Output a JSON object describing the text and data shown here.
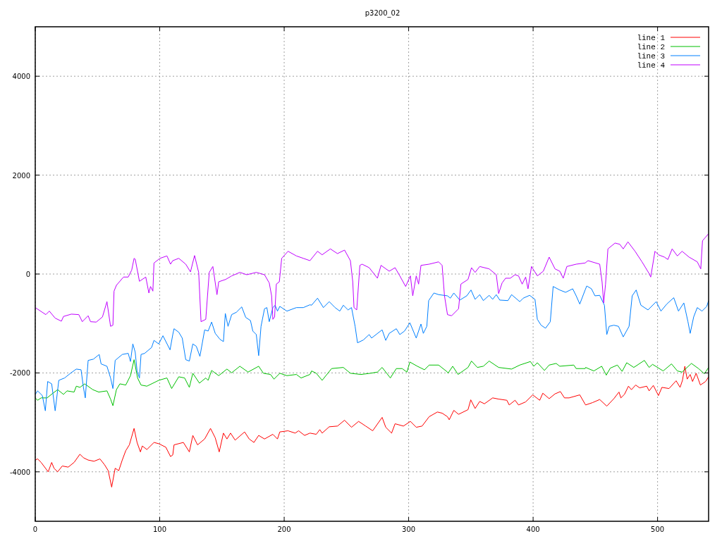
{
  "chart_data": {
    "type": "line",
    "title": "p3200_02",
    "xlim": [
      0,
      541
    ],
    "ylim": [
      -5000,
      5000
    ],
    "xticks": [
      0,
      100,
      200,
      300,
      400,
      500
    ],
    "yticks": [
      -4000,
      -2000,
      0,
      2000,
      4000
    ],
    "grid": true,
    "legend": "top right",
    "line_style": "solid",
    "marker": "none",
    "series": [
      {
        "name": "line 1",
        "color": "#ff0000",
        "x": [
          0,
          1.9,
          4.7,
          10.4,
          13.2,
          15.1,
          18,
          21.7,
          26.5,
          31.2,
          35.9,
          38.7,
          42.5,
          47.2,
          52,
          55.7,
          58.6,
          61.4,
          64.2,
          67.1,
          69.9,
          72.7,
          75.6,
          79.4,
          81.8,
          84.5,
          86,
          89.7,
          95.4,
          99.2,
          104.9,
          108.7,
          110.5,
          111.5,
          119,
          123.8,
          126.6,
          130.4,
          136.1,
          140.8,
          144.6,
          147.8,
          151.2,
          154,
          156.9,
          160.6,
          168.2,
          171.9,
          175.7,
          179.5,
          184.2,
          190.9,
          194.6,
          196.5,
          203.1,
          208.8,
          211.6,
          216.4,
          220.7,
          225.8,
          228.6,
          230.5,
          236.2,
          242.8,
          248.5,
          254.1,
          259.8,
          265.5,
          271.1,
          278.7,
          281.6,
          286.3,
          289.1,
          295.8,
          301.4,
          306.1,
          310.8,
          316.5,
          323.1,
          326.9,
          331.2,
          332.6,
          336.3,
          340.1,
          347.7,
          349.9,
          353.4,
          357.1,
          360.9,
          367.5,
          372.3,
          378.9,
          380.8,
          385.5,
          388.3,
          394,
          399.7,
          405.3,
          407.8,
          412.9,
          417.6,
          421.9,
          425.2,
          428.9,
          437.5,
          441.8,
          442.2,
          447.8,
          453.5,
          459.2,
          464.9,
          469,
          470.5,
          473.4,
          476.6,
          479,
          482.4,
          485.6,
          491.3,
          493.2,
          496.6,
          500.7,
          503.5,
          509.2,
          514.9,
          518.1,
          520,
          521.9,
          523.8,
          526.2,
          528.1,
          531,
          534.4,
          538.6,
          541
        ],
        "values": [
          -3762,
          -3738,
          -3810,
          -4000,
          -3810,
          -3929,
          -4000,
          -3882,
          -3905,
          -3810,
          -3644,
          -3715,
          -3762,
          -3786,
          -3739,
          -3858,
          -3976,
          -4309,
          -3929,
          -3976,
          -3762,
          -3573,
          -3455,
          -3122,
          -3406,
          -3597,
          -3478,
          -3549,
          -3406,
          -3431,
          -3502,
          -3691,
          -3658,
          -3455,
          -3406,
          -3597,
          -3264,
          -3455,
          -3336,
          -3122,
          -3312,
          -3597,
          -3217,
          -3336,
          -3217,
          -3359,
          -3193,
          -3336,
          -3406,
          -3264,
          -3336,
          -3241,
          -3336,
          -3193,
          -3170,
          -3217,
          -3170,
          -3264,
          -3217,
          -3241,
          -3146,
          -3217,
          -3089,
          -3075,
          -2957,
          -3099,
          -2980,
          -3075,
          -3170,
          -2899,
          -3099,
          -3217,
          -3028,
          -3075,
          -2980,
          -3099,
          -3075,
          -2885,
          -2790,
          -2814,
          -2885,
          -2947,
          -2757,
          -2837,
          -2743,
          -2544,
          -2719,
          -2577,
          -2624,
          -2505,
          -2529,
          -2553,
          -2648,
          -2553,
          -2648,
          -2586,
          -2444,
          -2553,
          -2410,
          -2520,
          -2424,
          -2377,
          -2505,
          -2505,
          -2444,
          -2633,
          -2648,
          -2600,
          -2538,
          -2672,
          -2520,
          -2387,
          -2505,
          -2434,
          -2268,
          -2339,
          -2245,
          -2302,
          -2268,
          -2363,
          -2253,
          -2458,
          -2292,
          -2316,
          -2159,
          -2292,
          -2150,
          -1865,
          -2125,
          -2031,
          -2173,
          -2007,
          -2245,
          -2173,
          -2078
        ]
      },
      {
        "name": "line 2",
        "color": "#00c000",
        "x": [
          0,
          1.9,
          4.7,
          9.5,
          14.2,
          18,
          22.7,
          25.5,
          31.2,
          33,
          35.9,
          39.7,
          46.3,
          51,
          57.6,
          60.5,
          62.4,
          65.2,
          68,
          72.7,
          76.5,
          79.4,
          82.2,
          85,
          89.7,
          99.2,
          105.8,
          109.6,
          115.3,
          120,
          123.8,
          126.6,
          131.9,
          137,
          138.9,
          141.7,
          147.4,
          154,
          157.8,
          164.4,
          171,
          179.5,
          183.3,
          189,
          191.8,
          196.5,
          202.2,
          209.8,
          213.6,
          220.7,
          222,
          225.8,
          230.5,
          238.1,
          247.5,
          253.2,
          261.7,
          269.3,
          274.9,
          278.7,
          285.3,
          290.1,
          294.8,
          298.6,
          301,
          307,
          312.7,
          316.5,
          324.1,
          331.2,
          331.6,
          335.4,
          339.7,
          347.7,
          350.5,
          355.2,
          360,
          364.7,
          372.3,
          382.7,
          389.3,
          397.8,
          400.6,
          403.4,
          409.1,
          412.9,
          418.5,
          421.4,
          432.7,
          434.6,
          441.8,
          442.2,
          448.8,
          455.1,
          458.8,
          462,
          467.7,
          471.5,
          475.2,
          480.9,
          489.4,
          493.2,
          496,
          504.5,
          511.2,
          515.9,
          519.7,
          527.2,
          532.9,
          537.6,
          541
        ],
        "values": [
          -2505,
          -2553,
          -2505,
          -2505,
          -2410,
          -2339,
          -2434,
          -2363,
          -2387,
          -2268,
          -2292,
          -2221,
          -2339,
          -2387,
          -2363,
          -2529,
          -2662,
          -2339,
          -2221,
          -2245,
          -2055,
          -1732,
          -2102,
          -2245,
          -2268,
          -2150,
          -2102,
          -2316,
          -2078,
          -2102,
          -2292,
          -2007,
          -2206,
          -2102,
          -2150,
          -1950,
          -2055,
          -1922,
          -1997,
          -1865,
          -1983,
          -1865,
          -2007,
          -2031,
          -2125,
          -2007,
          -2055,
          -2031,
          -2102,
          -2031,
          -1960,
          -2007,
          -2150,
          -1912,
          -1889,
          -2007,
          -2031,
          -2007,
          -1983,
          -1889,
          -2102,
          -1912,
          -1912,
          -1983,
          -1780,
          -1865,
          -1936,
          -1841,
          -1841,
          -1983,
          -2007,
          -1865,
          -2031,
          -1889,
          -1760,
          -1889,
          -1865,
          -1760,
          -1889,
          -1922,
          -1841,
          -1770,
          -1865,
          -1794,
          -1950,
          -1841,
          -1808,
          -1865,
          -1841,
          -1912,
          -1912,
          -1889,
          -1960,
          -1865,
          -2045,
          -1903,
          -1841,
          -1969,
          -1794,
          -1889,
          -1747,
          -1889,
          -1827,
          -1960,
          -1818,
          -1960,
          -1983,
          -1808,
          -1912,
          -2017,
          -1889
        ]
      },
      {
        "name": "line 3",
        "color": "#0080ff",
        "x": [
          0,
          1.9,
          5.7,
          8.1,
          10,
          13.2,
          16,
          17.6,
          18.9,
          23.6,
          28.3,
          33,
          36.8,
          38.7,
          40.2,
          42.5,
          46.7,
          51.4,
          52.9,
          57.6,
          60.5,
          62.4,
          64.2,
          69.9,
          74.7,
          76.5,
          78.4,
          80.3,
          81.8,
          83.7,
          85,
          87.9,
          93.5,
          95.4,
          99.2,
          102.6,
          108.3,
          110.5,
          111.5,
          115.3,
          118.1,
          120.9,
          123.8,
          126.6,
          129.4,
          132.3,
          136.1,
          138.9,
          141.7,
          144.6,
          148.4,
          151.2,
          152.7,
          154.9,
          157.8,
          161.6,
          165.9,
          169.1,
          172.9,
          174.8,
          177.6,
          179.5,
          181.4,
          184.2,
          186.1,
          188,
          190.9,
          192.7,
          194.6,
          196.5,
          202.2,
          209.8,
          215.4,
          220.7,
          222,
          226.8,
          231.5,
          236.2,
          240.9,
          244.7,
          247.5,
          251.3,
          254.1,
          257,
          258.9,
          263.6,
          268.3,
          270.2,
          278.7,
          281.6,
          284.4,
          290.1,
          292.9,
          296.7,
          301,
          306.1,
          309.9,
          311.8,
          314.6,
          316.1,
          320.3,
          324.1,
          331.2,
          333.5,
          336.3,
          341.1,
          346.7,
          350.1,
          353.4,
          357.1,
          360,
          364.7,
          367.5,
          370.4,
          373.2,
          379.8,
          382.7,
          389.3,
          392.1,
          397.2,
          401.5,
          403.4,
          406.4,
          410,
          413.8,
          416.1,
          421.4,
          426.1,
          431.8,
          434.6,
          437.5,
          441.8,
          443.1,
          446.9,
          449.7,
          453.5,
          457.3,
          459.2,
          461.1,
          464.9,
          468.6,
          472.4,
          477.1,
          479.6,
          482.8,
          486.6,
          492.3,
          498.9,
          502.7,
          507.4,
          513,
          516.8,
          521.1,
          524.4,
          526.2,
          529,
          531.9,
          535.7,
          539.5,
          541
        ],
        "values": [
          -2434,
          -2363,
          -2458,
          -2766,
          -2173,
          -2221,
          -2766,
          -2434,
          -2150,
          -2102,
          -2007,
          -1922,
          -1936,
          -2292,
          -2505,
          -1747,
          -1722,
          -1627,
          -1818,
          -1865,
          -2102,
          -2316,
          -1747,
          -1627,
          -1604,
          -1769,
          -1414,
          -1580,
          -1960,
          -2102,
          -1627,
          -1604,
          -1485,
          -1342,
          -1414,
          -1248,
          -1533,
          -1224,
          -1106,
          -1177,
          -1295,
          -1732,
          -1760,
          -1414,
          -1462,
          -1666,
          -1129,
          -1153,
          -972,
          -1200,
          -1320,
          -1367,
          -797,
          -1058,
          -821,
          -773,
          -665,
          -878,
          -940,
          -1153,
          -1224,
          -1651,
          -1058,
          -702,
          -679,
          -964,
          -679,
          -631,
          -750,
          -655,
          -750,
          -679,
          -679,
          -622,
          -631,
          -488,
          -679,
          -559,
          -679,
          -750,
          -631,
          -726,
          -679,
          -1058,
          -1391,
          -1334,
          -1224,
          -1295,
          -1129,
          -1342,
          -1200,
          -1106,
          -1224,
          -1153,
          -986,
          -1295,
          -1011,
          -1200,
          -1058,
          -537,
          -384,
          -417,
          -441,
          -488,
          -384,
          -527,
          -441,
          -323,
          -512,
          -417,
          -537,
          -431,
          -512,
          -417,
          -527,
          -537,
          -417,
          -559,
          -488,
          -431,
          -512,
          -916,
          -1035,
          -1096,
          -964,
          -252,
          -323,
          -370,
          -299,
          -441,
          -607,
          -323,
          -242,
          -299,
          -441,
          -431,
          -631,
          -1224,
          -1058,
          -1035,
          -1058,
          -1271,
          -1058,
          -441,
          -323,
          -631,
          -726,
          -559,
          -750,
          -607,
          -479,
          -750,
          -584,
          -964,
          -1200,
          -868,
          -679,
          -750,
          -655,
          -537
        ]
      },
      {
        "name": "line 4",
        "color": "#c000ff",
        "x": [
          0,
          8.5,
          11.3,
          16,
          21,
          22.7,
          29,
          35,
          37.8,
          42.5,
          44.4,
          49,
          54,
          57.6,
          60.5,
          62.4,
          63.3,
          65.2,
          70.9,
          74.7,
          77.5,
          79.4,
          80.3,
          83.7,
          88.8,
          91.3,
          92.6,
          94.5,
          95.4,
          100.2,
          105.8,
          108.7,
          110.5,
          115.3,
          120.9,
          124.7,
          128,
          131.3,
          133.2,
          137,
          139.8,
          142.7,
          146,
          147.4,
          153,
          157.8,
          164.4,
          170,
          177.6,
          184.2,
          188,
          189.9,
          190.9,
          192.3,
          193.7,
          196.1,
          198,
          203.1,
          209.8,
          215.4,
          220.7,
          226.8,
          230.5,
          237.1,
          242.8,
          248.5,
          253.2,
          255.1,
          256.1,
          258.3,
          260.8,
          262.6,
          268.3,
          274.9,
          277.8,
          284.4,
          289.1,
          292.9,
          297.6,
          301.4,
          303.3,
          306.1,
          308,
          309.9,
          316.5,
          324.1,
          326.9,
          328.8,
          331.2,
          334.5,
          340.1,
          342,
          347.7,
          350.5,
          353.4,
          357.1,
          364.7,
          370.4,
          372.3,
          375.1,
          377.9,
          381.7,
          385.5,
          388.3,
          391.2,
          394,
          395.9,
          398.7,
          403.4,
          408.2,
          412.9,
          417.6,
          421.4,
          424.2,
          427.1,
          434.6,
          441.8,
          444.1,
          453.5,
          455.4,
          456.7,
          458.2,
          460.1,
          465.8,
          469.6,
          472.4,
          476.2,
          481.9,
          487.5,
          493.2,
          494.5,
          497.9,
          500.7,
          505.5,
          508.3,
          511.7,
          515.9,
          519.7,
          525.3,
          531.9,
          534.7,
          536.1,
          541
        ],
        "values": [
          -679,
          -821,
          -750,
          -892,
          -954,
          -858,
          -811,
          -821,
          -964,
          -844,
          -964,
          -972,
          -868,
          -559,
          -1058,
          -1035,
          -346,
          -228,
          -61,
          -61,
          81,
          317,
          300,
          -147,
          -61,
          -384,
          -252,
          -346,
          223,
          317,
          366,
          199,
          270,
          317,
          199,
          43,
          374,
          33,
          -964,
          -916,
          33,
          152,
          -417,
          -157,
          -109,
          -38,
          33,
          -14,
          33,
          -14,
          -180,
          -441,
          -916,
          -868,
          -204,
          -157,
          317,
          460,
          366,
          317,
          270,
          460,
          389,
          508,
          413,
          484,
          270,
          -157,
          -679,
          -726,
          175,
          199,
          128,
          -85,
          175,
          57,
          128,
          -38,
          -252,
          -38,
          -441,
          -38,
          -204,
          175,
          199,
          246,
          175,
          -441,
          -821,
          -844,
          -702,
          -204,
          -109,
          128,
          33,
          152,
          104,
          -14,
          -394,
          -180,
          -85,
          -85,
          -14,
          -38,
          -204,
          -61,
          -299,
          152,
          -38,
          57,
          342,
          104,
          57,
          -85,
          152,
          199,
          223,
          270,
          199,
          -157,
          -584,
          -204,
          508,
          626,
          602,
          508,
          650,
          460,
          246,
          10,
          -61,
          460,
          389,
          342,
          294,
          508,
          366,
          460,
          342,
          246,
          104,
          673,
          816
        ]
      }
    ]
  }
}
